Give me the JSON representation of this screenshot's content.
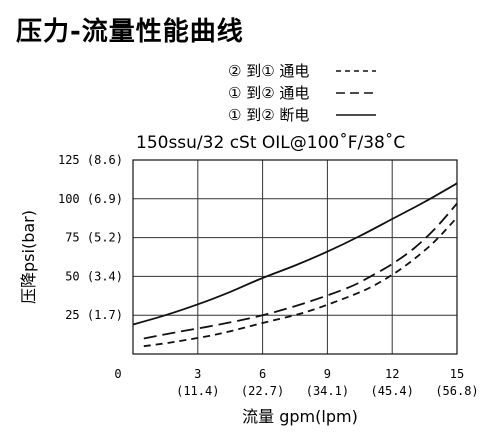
{
  "chart_data": {
    "type": "line",
    "title": "压力-流量性能曲线",
    "subtitle": "150ssu/32 cSt OIL@100˚F/38˚C",
    "xlabel": "流量 gpm(lpm)",
    "ylabel": "压降psi(bar)",
    "xlim": [
      0,
      15
    ],
    "ylim": [
      0,
      125
    ],
    "grid": true,
    "legend_position": "top-right",
    "x_ticks": [
      {
        "value": 3,
        "label": "3",
        "sublabel": "(11.4)"
      },
      {
        "value": 6,
        "label": "6",
        "sublabel": "(22.7)"
      },
      {
        "value": 9,
        "label": "9",
        "sublabel": "(34.1)"
      },
      {
        "value": 12,
        "label": "12",
        "sublabel": "(45.4)"
      },
      {
        "value": 15,
        "label": "15",
        "sublabel": "(56.8)"
      }
    ],
    "y_ticks": [
      {
        "value": 25,
        "label": "25 (1.7)"
      },
      {
        "value": 50,
        "label": "50 (3.4)"
      },
      {
        "value": 75,
        "label": "75 (5.2)"
      },
      {
        "value": 100,
        "label": "100 (6.9)"
      },
      {
        "value": 125,
        "label": "125 (8.6)"
      }
    ],
    "origin_label": "0",
    "series": [
      {
        "name": "② 到① 通电",
        "style": "short-dash",
        "x": [
          0.5,
          2,
          4,
          6,
          8,
          10,
          11,
          12,
          13,
          14,
          15
        ],
        "y": [
          5,
          8,
          13,
          20,
          27,
          37,
          43,
          51,
          61,
          73,
          88
        ]
      },
      {
        "name": "① 到② 通电",
        "style": "long-dash",
        "x": [
          0.5,
          2,
          4,
          6,
          8,
          10,
          11,
          12,
          13,
          14,
          15
        ],
        "y": [
          10,
          14,
          19,
          25,
          33,
          43,
          50,
          58,
          68,
          81,
          97
        ]
      },
      {
        "name": "① 到② 断电",
        "style": "solid",
        "x": [
          0,
          1.5,
          3,
          4.5,
          6,
          7.5,
          9,
          10.5,
          12,
          13.5,
          15
        ],
        "y": [
          19,
          25,
          32,
          40,
          49,
          57,
          66,
          76,
          87,
          98,
          110
        ]
      }
    ]
  }
}
